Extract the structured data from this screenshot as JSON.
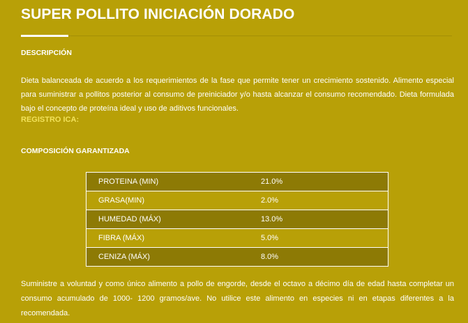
{
  "product": {
    "title": "SUPER POLLITO INICIACIÓN DORADO"
  },
  "description": {
    "heading": "DESCRIPCIÓN",
    "text": "Dieta balanceada de acuerdo a los requerimientos de la fase que permite tener un crecimiento sostenido. Alimento especial para suministrar a pollitos posterior al consumo de preiniciador y/o hasta alcanzar el consumo recomendado. Dieta formulada bajo el concepto de proteína ideal y uso de aditivos funcionales.",
    "registro_label": "REGISTRO ICA:"
  },
  "composition": {
    "heading": "COMPOSICIÓN GARANTIZADA",
    "rows": [
      {
        "name": "PROTEINA (MIN)",
        "value": "21.0%"
      },
      {
        "name": "GRASA(MIN)",
        "value": "2.0%"
      },
      {
        "name": "HUMEDAD (MÁX)",
        "value": "13.0%"
      },
      {
        "name": "FIBRA (MÁX)",
        "value": "5.0%"
      },
      {
        "name": "CENIZA (MÁX)",
        "value": "8.0%"
      }
    ]
  },
  "usage": {
    "text": "Suministre a voluntad y como único alimento a pollo de engorde, desde el octavo a décimo día de edad hasta completar un consumo acumulado de 1000- 1200 gramos/ave. No utilice este alimento en especies ni en etapas diferentes a la recomendada."
  },
  "colors": {
    "background": "#b8a007",
    "row_dark": "#8d7a05",
    "registro": "#f2e25a"
  }
}
